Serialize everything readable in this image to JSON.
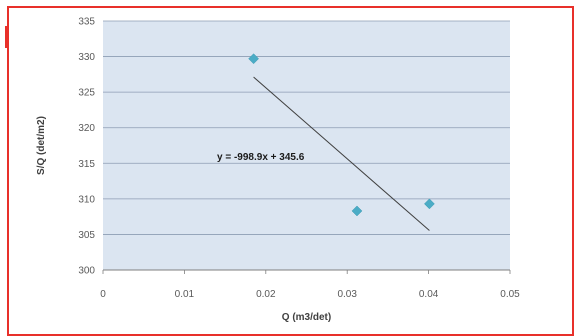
{
  "chart_data": {
    "type": "scatter",
    "xlabel": "Q (m3/det)",
    "ylabel": "S/Q (det/m2)",
    "xlim": [
      0,
      0.05
    ],
    "ylim": [
      300,
      335
    ],
    "x_ticks": [
      "0",
      "0.01",
      "0.02",
      "0.03",
      "0.04",
      "0.05"
    ],
    "y_ticks": [
      "300",
      "305",
      "310",
      "315",
      "320",
      "325",
      "330",
      "335"
    ],
    "grid": "horizontal",
    "legend": "none",
    "series": [
      {
        "marker": "diamond",
        "color": "#4bacc6",
        "points": [
          {
            "x": 0.0185,
            "y": 329.7
          },
          {
            "x": 0.0312,
            "y": 308.3
          },
          {
            "x": 0.0401,
            "y": 309.3
          }
        ]
      }
    ],
    "trendline": {
      "type": "linear",
      "slope": -998.9,
      "intercept": 345.6,
      "x_range": [
        0.0185,
        0.0401
      ],
      "color": "#404040",
      "equation": "y = -998.9x + 345.6"
    },
    "plot_background": "#dbe5f1",
    "gridline_color": "#8c9cb3"
  }
}
